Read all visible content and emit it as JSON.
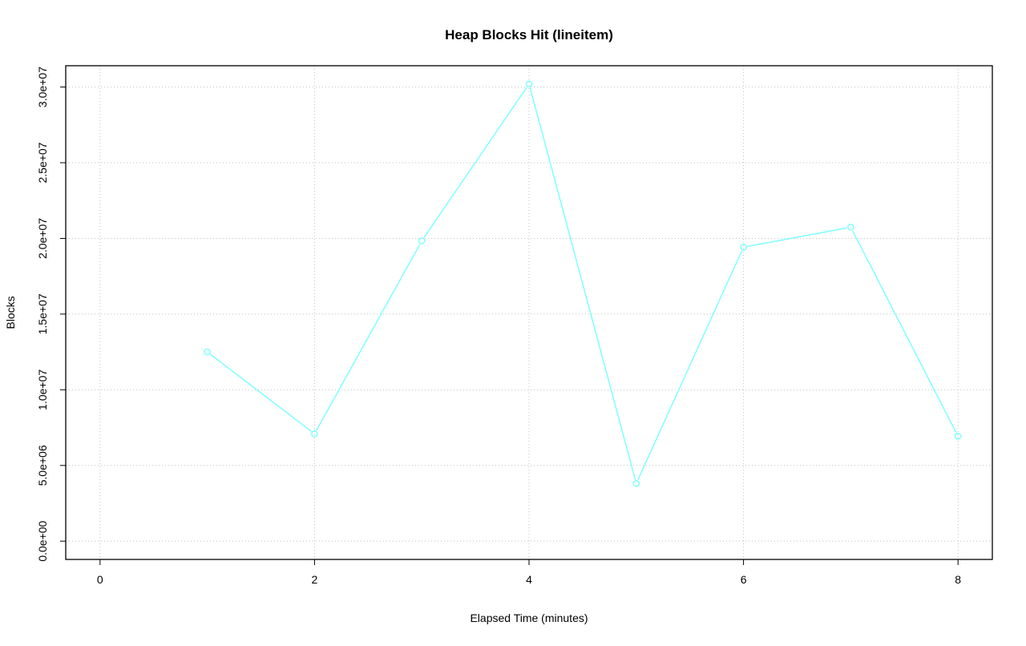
{
  "chart_data": {
    "type": "line",
    "title": "Heap Blocks Hit (lineitem)",
    "xlabel": "Elapsed Time (minutes)",
    "ylabel": "Blocks",
    "x": [
      1,
      2,
      3,
      4,
      5,
      6,
      7,
      8
    ],
    "series": [
      {
        "values": [
          12500000,
          7090000,
          19840000,
          30200000,
          3810000,
          19420000,
          20740000,
          6930000
        ],
        "color": "#80FFFF",
        "markers": "open-circle"
      }
    ],
    "xlim": [
      0,
      8
    ],
    "ylim": [
      0,
      30200000
    ],
    "xticks": [
      0,
      2,
      4,
      6,
      8
    ],
    "xtick_labels": [
      "0",
      "2",
      "4",
      "6",
      "8"
    ],
    "yticks": [
      0,
      5000000,
      10000000,
      15000000,
      20000000,
      25000000,
      30000000
    ],
    "ytick_labels": [
      "0.0e+00",
      "5.0e+06",
      "1.0e+07",
      "1.5e+07",
      "2.0e+07",
      "2.5e+07",
      "3.0e+07"
    ],
    "grid": true,
    "grid_style": "dotted",
    "grid_color": "#C0C0C0"
  }
}
